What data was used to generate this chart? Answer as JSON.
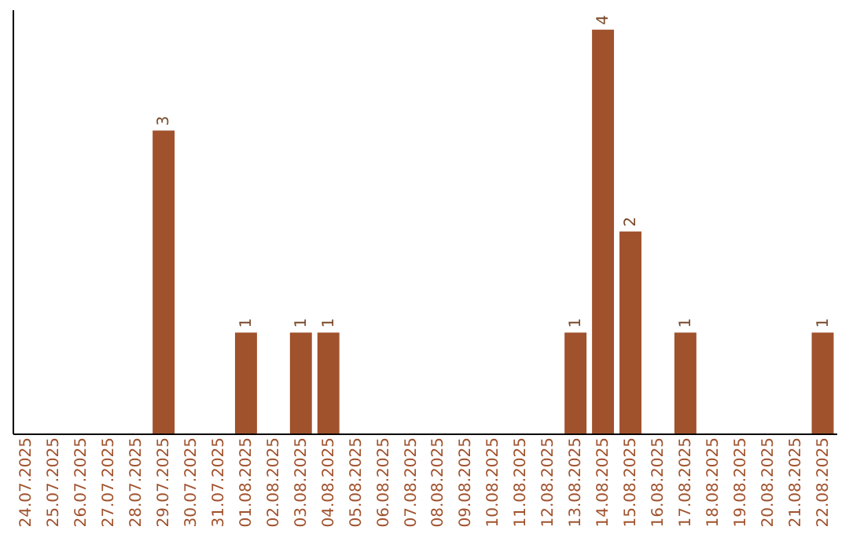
{
  "chart_data": {
    "type": "bar",
    "categories": [
      "24.07.2025",
      "25.07.2025",
      "26.07.2025",
      "27.07.2025",
      "28.07.2025",
      "29.07.2025",
      "30.07.2025",
      "31.07.2025",
      "01.08.2025",
      "02.08.2025",
      "03.08.2025",
      "04.08.2025",
      "05.08.2025",
      "06.08.2025",
      "07.08.2025",
      "08.08.2025",
      "09.08.2025",
      "10.08.2025",
      "11.08.2025",
      "12.08.2025",
      "13.08.2025",
      "14.08.2025",
      "15.08.2025",
      "16.08.2025",
      "17.08.2025",
      "18.08.2025",
      "19.08.2025",
      "20.08.2025",
      "21.08.2025",
      "22.08.2025"
    ],
    "values": [
      0,
      0,
      0,
      0,
      0,
      3,
      0,
      0,
      1,
      0,
      1,
      1,
      0,
      0,
      0,
      0,
      0,
      0,
      0,
      0,
      1,
      4,
      2,
      0,
      1,
      0,
      0,
      0,
      0,
      1
    ],
    "value_labels": [
      null,
      null,
      null,
      null,
      null,
      "3",
      null,
      null,
      "1",
      null,
      "1",
      "1",
      null,
      null,
      null,
      null,
      null,
      null,
      null,
      null,
      "1",
      "4",
      "2",
      null,
      "1",
      null,
      null,
      null,
      null,
      "1"
    ],
    "color": "#a0522d",
    "ylim": [
      0,
      4.2
    ],
    "tick_labels": "x",
    "grid": false
  }
}
